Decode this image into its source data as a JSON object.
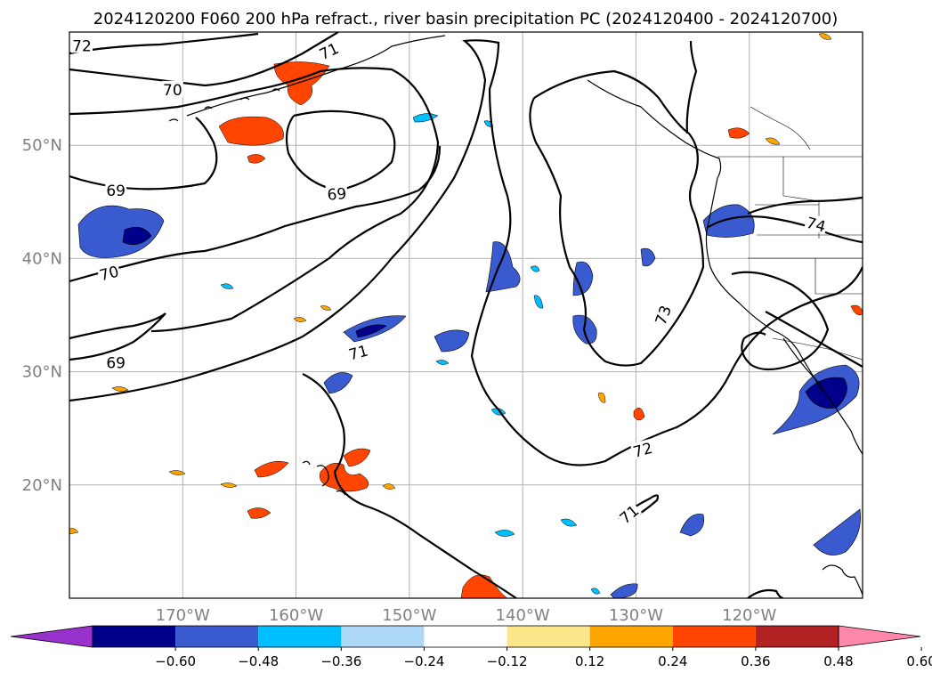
{
  "title": "2024120200 F060 200 hPa refract., river basin precipitation PC (2024120400 - 2024120700)",
  "lat_ticks": [
    {
      "label": "20°N",
      "lat": 20
    },
    {
      "label": "30°N",
      "lat": 30
    },
    {
      "label": "40°N",
      "lat": 40
    },
    {
      "label": "50°N",
      "lat": 50
    }
  ],
  "lon_ticks": [
    {
      "label": "170°W",
      "lon": -170
    },
    {
      "label": "160°W",
      "lon": -160
    },
    {
      "label": "150°W",
      "lon": -150
    },
    {
      "label": "140°W",
      "lon": -140
    },
    {
      "label": "130°W",
      "lon": -130
    },
    {
      "label": "120°W",
      "lon": -120
    }
  ],
  "map_extent": {
    "lon_min": -180,
    "lon_max": -110,
    "lat_min": 10,
    "lat_max": 60
  },
  "colorbar": {
    "ticks": [
      "−0.60",
      "−0.48",
      "−0.36",
      "−0.24",
      "−0.12",
      "0.12",
      "0.24",
      "0.36",
      "0.48",
      "0.60"
    ],
    "colors": [
      "#9932cc",
      "#00008b",
      "#3a5bcf",
      "#00bfff",
      "#add8f6",
      "#ffffff",
      "#fde68a",
      "#ffa500",
      "#ff4500",
      "#b22222",
      "#ff88aa"
    ],
    "extend": "both"
  },
  "contour_labels": [
    {
      "text": "72",
      "lon": -178.9,
      "lat": 58.8,
      "rot": 0
    },
    {
      "text": "71",
      "lon": -157.1,
      "lat": 58.3,
      "rot": -25
    },
    {
      "text": "70",
      "lon": -170.9,
      "lat": 54.9,
      "rot": 0
    },
    {
      "text": "69",
      "lon": -175.9,
      "lat": 46.0,
      "rot": 0
    },
    {
      "text": "69",
      "lon": -156.4,
      "lat": 45.7,
      "rot": -5
    },
    {
      "text": "70",
      "lon": -176.5,
      "lat": 38.7,
      "rot": -15
    },
    {
      "text": "69",
      "lon": -175.9,
      "lat": 30.8,
      "rot": 0
    },
    {
      "text": "71",
      "lon": -154.5,
      "lat": 31.7,
      "rot": -15
    },
    {
      "text": "73",
      "lon": -127.6,
      "lat": 35.0,
      "rot": -70
    },
    {
      "text": "74",
      "lon": -114.1,
      "lat": 43.0,
      "rot": 15
    },
    {
      "text": "72",
      "lon": -129.4,
      "lat": 23.1,
      "rot": -15
    },
    {
      "text": "71",
      "lon": -130.6,
      "lat": 17.4,
      "rot": -40
    }
  ]
}
